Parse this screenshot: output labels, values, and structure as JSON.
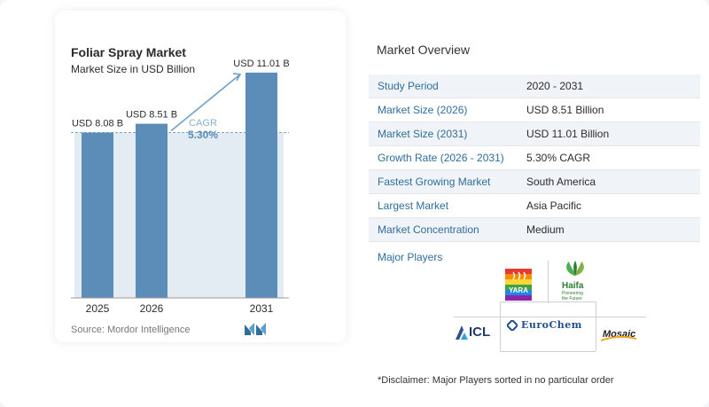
{
  "chart": {
    "title": "Foliar Spray Market",
    "subtitle": "Market Size in USD Billion",
    "source": "Source:  Mordor Intelligence",
    "cagr_label": "CAGR",
    "cagr_value": "5.30%"
  },
  "chart_data": {
    "type": "bar",
    "title": "Foliar Spray Market",
    "subtitle": "Market Size in USD Billion",
    "categories": [
      "2025",
      "2026",
      "2031"
    ],
    "values": [
      8.08,
      8.51,
      11.01
    ],
    "data_labels": [
      "USD 8.08 B",
      "USD 8.51 B",
      "USD 11.01 B"
    ],
    "ylim": [
      0,
      12
    ],
    "grid": false,
    "bar_color": "#5b8db8",
    "band_color": "#e3ecf3",
    "annotation": {
      "label": "CAGR",
      "value": "5.30%"
    }
  },
  "overview": {
    "title": "Market Overview",
    "rows": [
      {
        "label": "Study Period",
        "value": "2020 - 2031"
      },
      {
        "label": "Market Size (2026)",
        "value": "USD 8.51 Billion"
      },
      {
        "label": "Market Size (2031)",
        "value": "USD 11.01 Billion"
      },
      {
        "label": "Growth Rate (2026 - 2031)",
        "value": "5.30% CAGR"
      },
      {
        "label": "Fastest Growing Market",
        "value": "South America"
      },
      {
        "label": "Largest Market",
        "value": "Asia Pacific"
      },
      {
        "label": "Market Concentration",
        "value": "Medium"
      }
    ]
  },
  "players": {
    "title": "Major Players",
    "logos": {
      "yara": "YARA",
      "haifa": "Haifa",
      "haifa_tagline_1": "Pioneering",
      "haifa_tagline_2": "the Future",
      "icl": "ICL",
      "eurochem": "EuroChem",
      "mosaic": "Mosaic"
    }
  },
  "disclaimer": "*Disclaimer: Major Players sorted in no particular order",
  "colors": {
    "accent": "#2f6d9a",
    "bar": "#5b8db8",
    "row_shade": "#f0f4f8",
    "cagr": "#5b8db8"
  },
  "icons": {
    "brand": "mordor-logo-icon",
    "arrow": "cagr-arrow-icon"
  }
}
